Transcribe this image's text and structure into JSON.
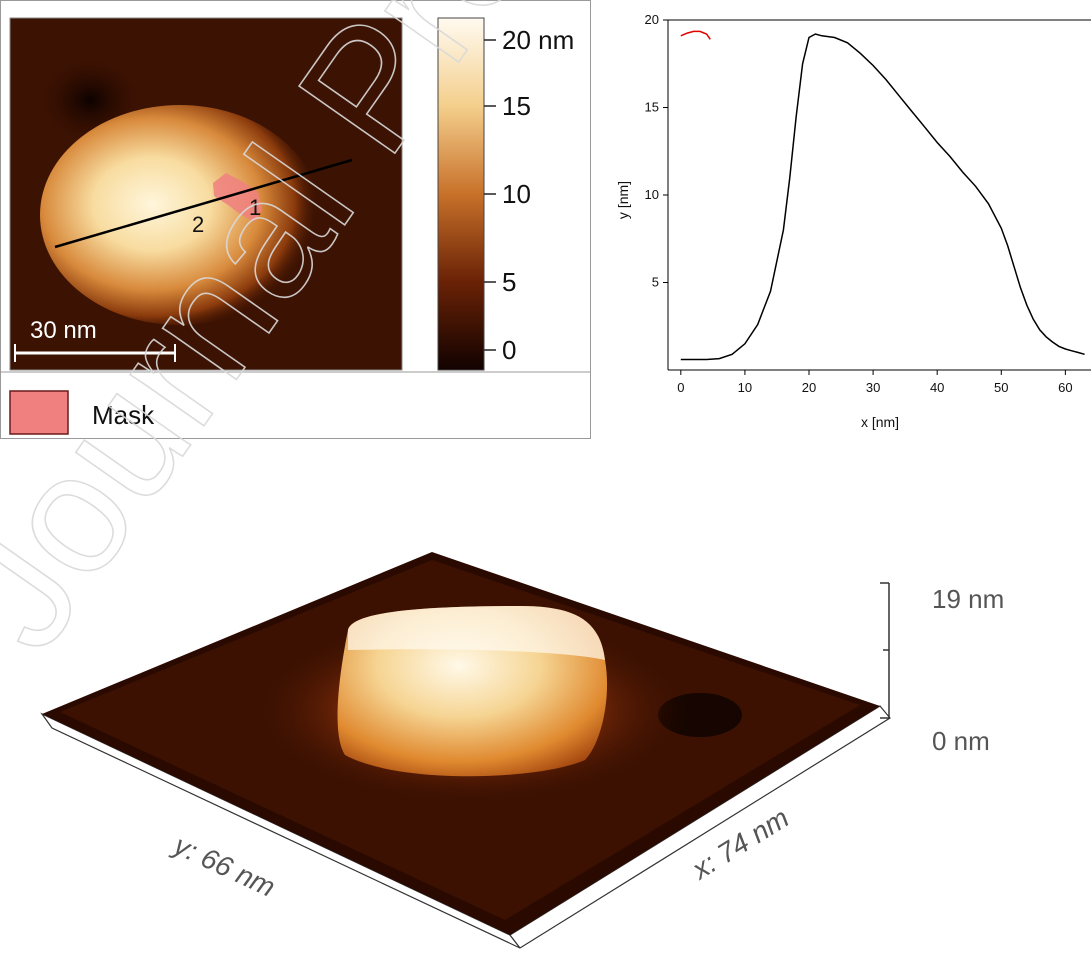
{
  "afm_map": {
    "scale_bar_label": "30 nm",
    "mask_legend_label": "Mask",
    "mask_color": "#f08080",
    "profile_markers": [
      "2",
      "1"
    ],
    "colorbar_ticks": [
      {
        "label": "20 nm",
        "value": 20
      },
      {
        "label": "15",
        "value": 15
      },
      {
        "label": "10",
        "value": 10
      },
      {
        "label": "5",
        "value": 5
      },
      {
        "label": "0",
        "value": 0
      }
    ]
  },
  "view3d": {
    "z_max_label": "19 nm",
    "z_min_label": "0 nm",
    "x_axis_label": "x: 74 nm",
    "y_axis_label": "y: 66 nm"
  },
  "watermark": "Journal Pre-proof",
  "chart_data": {
    "type": "line",
    "title": "",
    "xlabel": "x [nm]",
    "ylabel": "y [nm]",
    "xlim": [
      -2,
      64
    ],
    "ylim": [
      0,
      20
    ],
    "x_ticks": [
      0,
      10,
      20,
      30,
      40,
      50,
      60
    ],
    "x_tick_labels": [
      "0",
      "10",
      "20",
      "30",
      "40",
      "50",
      "60"
    ],
    "y_ticks": [
      5,
      10,
      15,
      20
    ],
    "y_tick_labels": [
      "5",
      "10",
      "15",
      "20"
    ],
    "grid": false,
    "series": [
      {
        "color": "#000000",
        "x": [
          0,
          2,
          4,
          6,
          8,
          10,
          12,
          14,
          16,
          17,
          18,
          19,
          20,
          21,
          22,
          24,
          26,
          28,
          30,
          32,
          34,
          36,
          38,
          40,
          42,
          44,
          46,
          48,
          50,
          51,
          52,
          53,
          54,
          55,
          56,
          57,
          58,
          59,
          60,
          61,
          62,
          63
        ],
        "values": [
          0.6,
          0.6,
          0.6,
          0.65,
          0.9,
          1.5,
          2.6,
          4.5,
          8,
          11,
          14.5,
          17.5,
          19,
          19.2,
          19.1,
          19.0,
          18.7,
          18.1,
          17.4,
          16.6,
          15.7,
          14.8,
          13.9,
          13.0,
          12.2,
          11.3,
          10.5,
          9.5,
          8.1,
          7.1,
          5.9,
          4.7,
          3.7,
          2.9,
          2.3,
          1.9,
          1.6,
          1.35,
          1.2,
          1.1,
          1.0,
          0.9
        ]
      },
      {
        "color": "#e00000",
        "x": [
          0,
          1,
          2,
          3,
          4,
          4.6
        ],
        "values": [
          19.1,
          19.25,
          19.35,
          19.35,
          19.2,
          18.9
        ]
      }
    ]
  }
}
